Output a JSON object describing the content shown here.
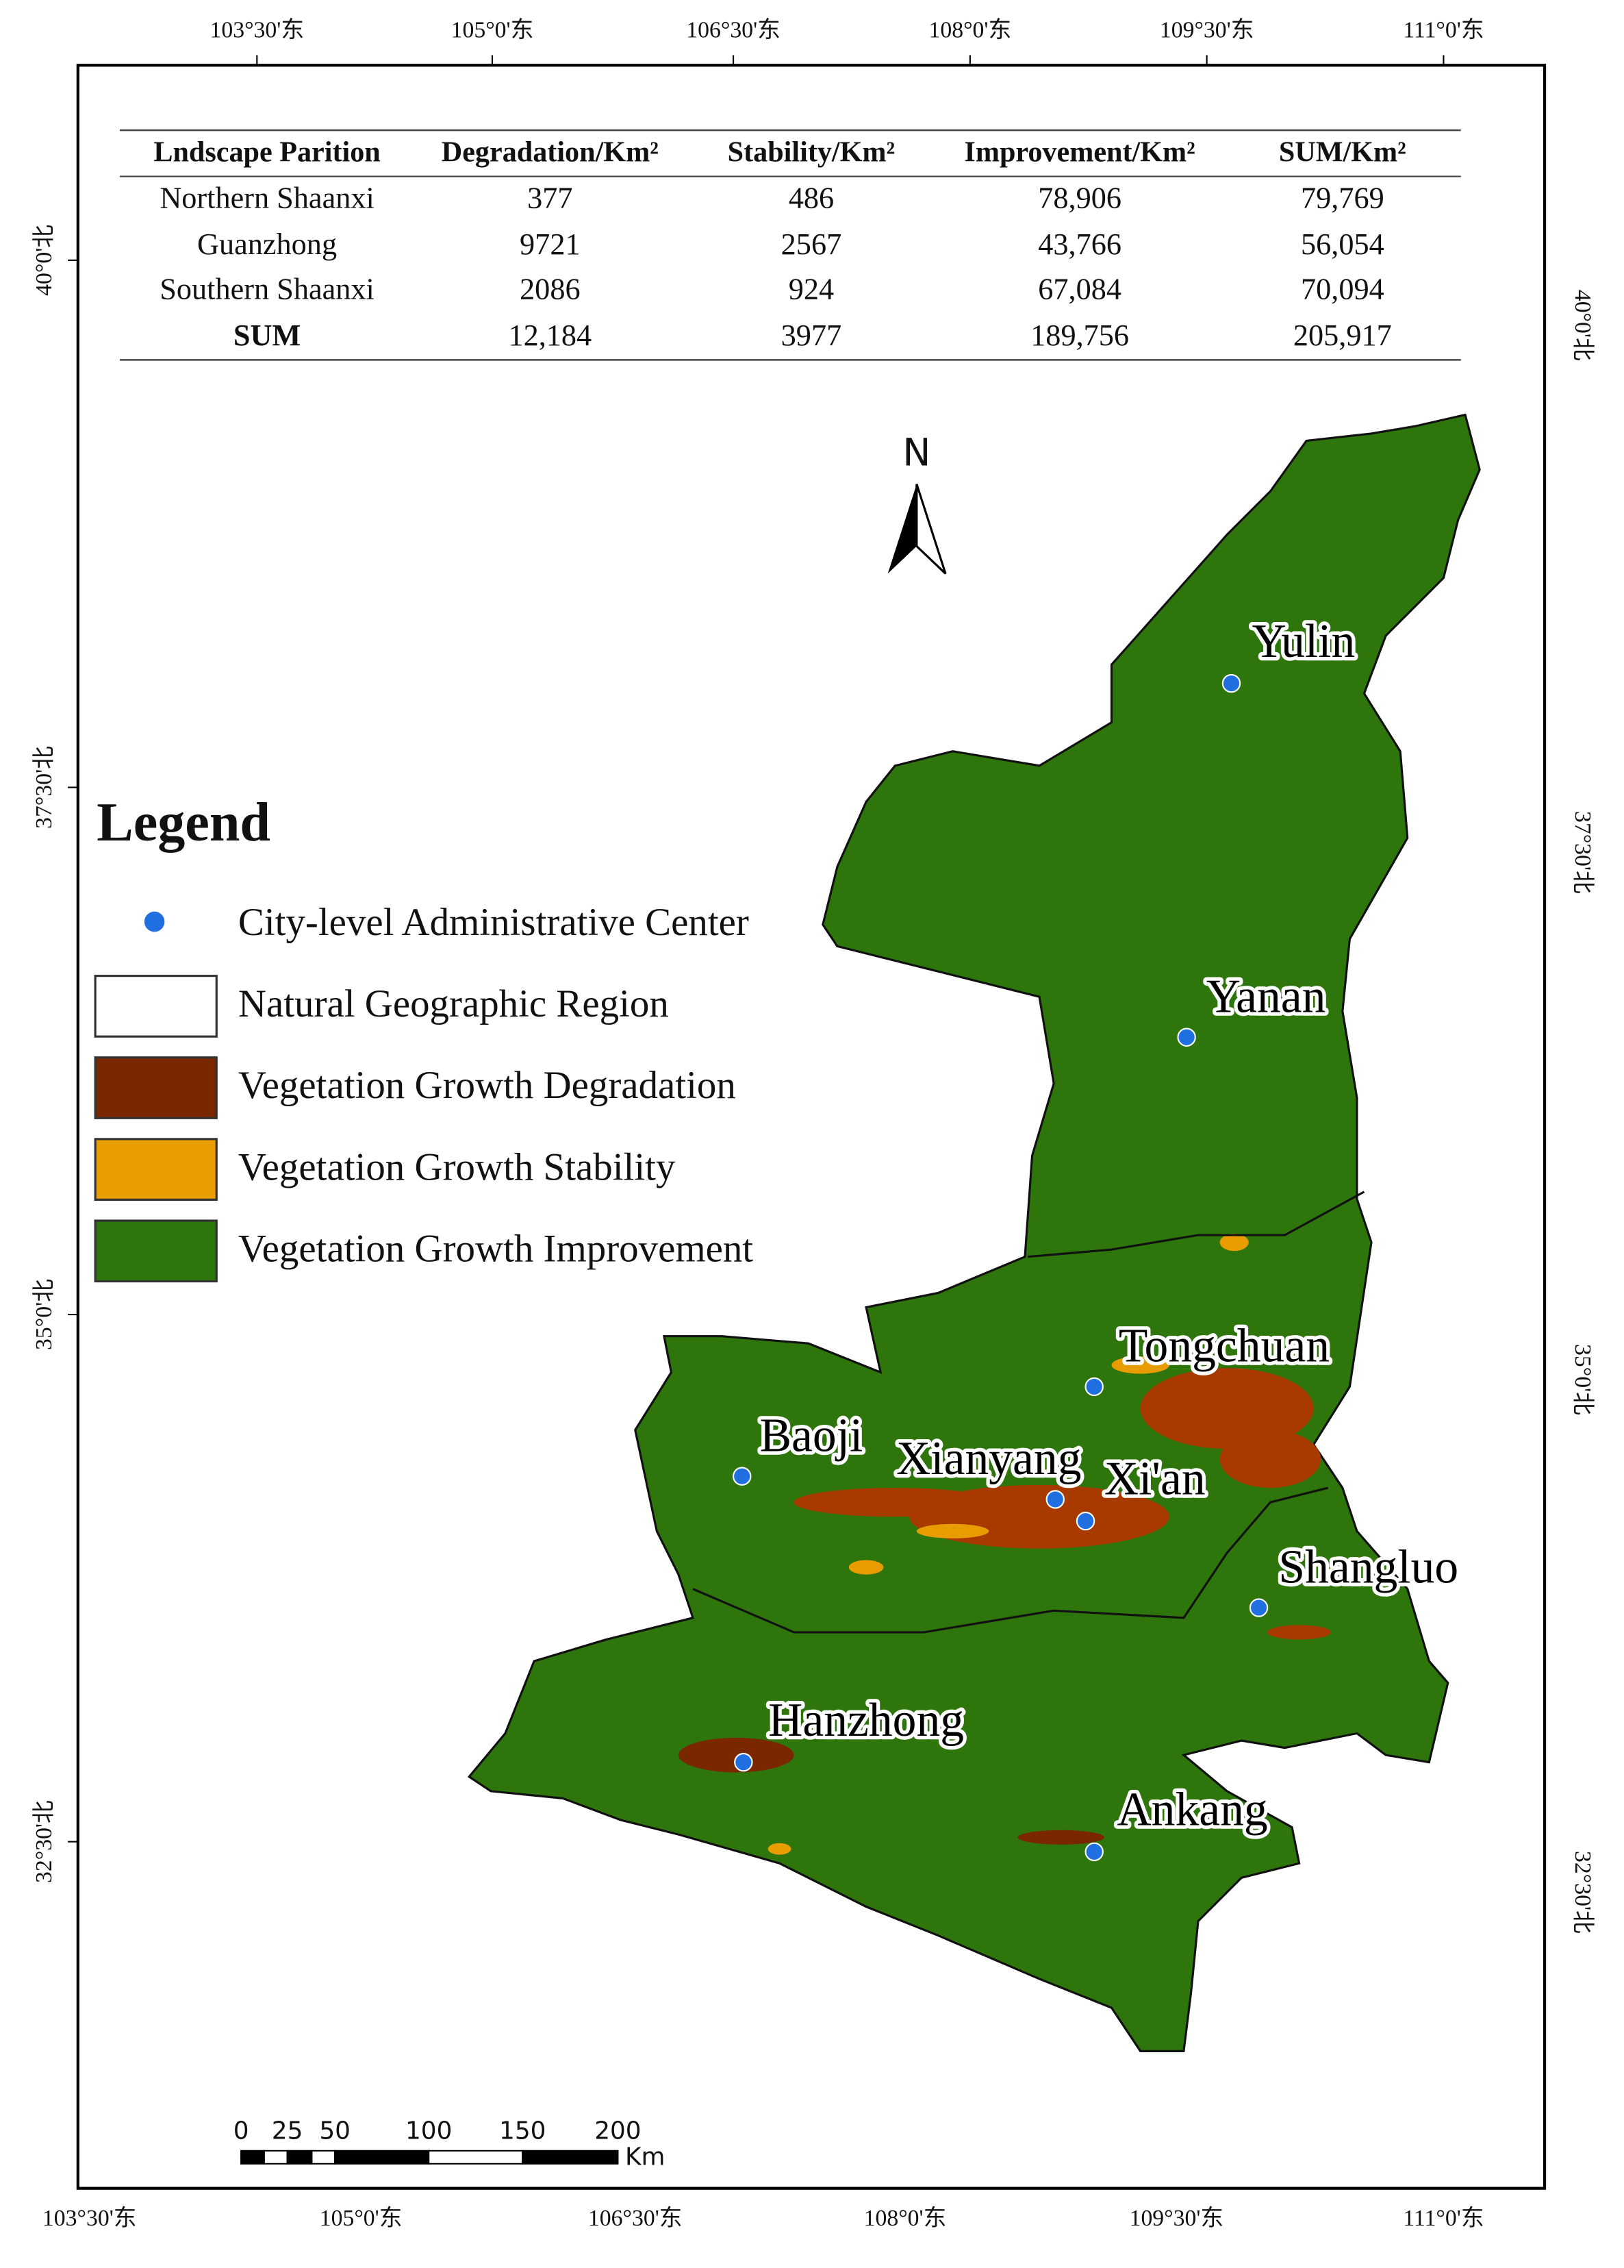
{
  "table": {
    "header": [
      "Lndscape Parition",
      "Degradation/Km²",
      "Stability/Km²",
      "Improvement/Km²",
      "SUM/Km²"
    ],
    "rows": [
      [
        "Northern Shaanxi",
        "377",
        "486",
        "78,906",
        "79,769"
      ],
      [
        "Guanzhong",
        "9721",
        "2567",
        "43,766",
        "56,054"
      ],
      [
        "Southern Shaanxi",
        "2086",
        "924",
        "67,084",
        "70,094"
      ],
      [
        "SUM",
        "12,184",
        "3977",
        "189,756",
        "205,917"
      ]
    ]
  },
  "legend": {
    "title": "Legend",
    "items": [
      {
        "label": "City-level Administrative Center",
        "color": "#1f6fe0"
      },
      {
        "label": "Natural Geographic Region",
        "color": "#ffffff"
      },
      {
        "label": "Vegetation Growth Degradation",
        "color": "#7a2700"
      },
      {
        "label": "Vegetation Growth Stability",
        "color": "#e89c00"
      },
      {
        "label": "Vegetation Growth Improvement",
        "color": "#2e760c"
      }
    ]
  },
  "north": "N",
  "cities": [
    "Yulin",
    "Yanan",
    "Tongchuan",
    "Baoji",
    "Xianyang",
    "Xi'an",
    "Shangluo",
    "Hanzhong",
    "Ankang"
  ],
  "graticule": {
    "top": [
      "103°30'东",
      "105°0'东",
      "106°30'东",
      "108°0'东",
      "109°30'东",
      "111°0'东"
    ],
    "bottom": [
      "103°30'东",
      "105°0'东",
      "106°30'东",
      "108°0'东",
      "109°30'东",
      "111°0'东"
    ],
    "left": [
      "40°0'北",
      "37°30'北",
      "35°0'北",
      "32°30'北"
    ],
    "right": [
      "40°0'北",
      "37°30'北",
      "35°0'北",
      "32°30'北"
    ]
  },
  "scale_bar": {
    "labels": [
      "0",
      "25",
      "50",
      "100",
      "150",
      "200"
    ],
    "unit": "Km"
  }
}
